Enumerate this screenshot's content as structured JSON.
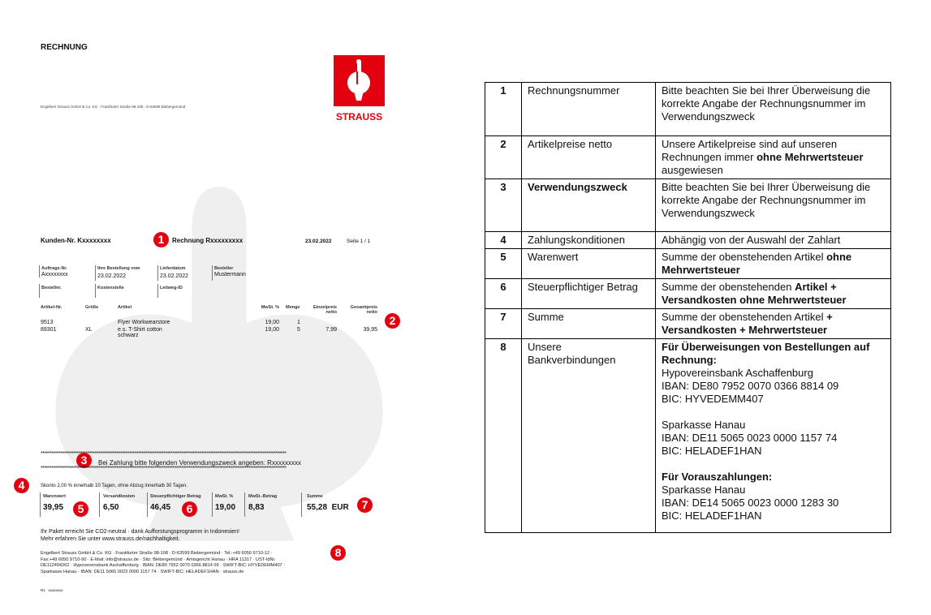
{
  "invoice": {
    "title": "RECHNUNG",
    "sender_line": "Engelbert Strauss GmbH & Co. KG · Frankfurter Straße 98-108 · D-63599 Biebergemünd",
    "logo_text": "STRAUSS",
    "customer_no": "Kunden-Nr. Kxxxxxxxx",
    "invoice_no": "Rechnung Rxxxxxxxxx",
    "date": "23.02.2022",
    "page": "Seite  1 / 1",
    "fields": [
      {
        "label": "Auftrags-Nr.",
        "value": "Axxxxxxxx"
      },
      {
        "label": "Ihre Bestellung vom",
        "value": "23.02.2022"
      },
      {
        "label": "Lieferdatum",
        "value": "23.02.2022"
      },
      {
        "label": "Besteller",
        "value": "Mustermann"
      },
      {
        "label": "Bestellnr.",
        "value": ""
      },
      {
        "label": "Kostenstelle",
        "value": ""
      },
      {
        "label": "Leitweg-ID",
        "value": ""
      }
    ],
    "item_headers": [
      "Artikel-Nr.",
      "Größe",
      "Artikel",
      "MwSt. %",
      "Menge",
      "Einzelpreis netto",
      "Gesamtpreis netto"
    ],
    "items": [
      {
        "nr": "9513",
        "size": "",
        "article": "Flyer Workwearstore",
        "vat": "19,00",
        "qty": "1",
        "unit": "",
        "total": ""
      },
      {
        "nr": "89301",
        "size": "XL",
        "article": "e.s. T-Shirt cotton schwarz",
        "vat": "19,00",
        "qty": "5",
        "unit": "7,99",
        "total": "39,95"
      }
    ],
    "stars": "****************************************************************************************************************************************",
    "purpose": "Bei Zahlung bitte folgenden Verwendungszweck angeben:",
    "purpose_ref": "Rxxxxxxxxx",
    "terms": "Skonto 2,00 % innerhalb 10 Tagen, ohne Abzug innerhalb 30 Tagen.",
    "totals": [
      {
        "label": "Warenwert",
        "value": "39,95"
      },
      {
        "label": "Versandkosten",
        "value": "6,50"
      },
      {
        "label": "Steuerpflichtiger Betrag",
        "value": "46,45"
      },
      {
        "label": "MwSt. %",
        "value": "19,00"
      },
      {
        "label": "MwSt.-Betrag",
        "value": "8,83"
      },
      {
        "label": "Summe",
        "value": "55,28  EUR"
      }
    ],
    "co2_1": "Ihr Paket erreicht Sie CO2-neutral · dank Aufforstungsprogramm in Indonesien!",
    "co2_2": "Mehr erfahren Sie unter www.strauss.de/nachhaltigkeit.",
    "footer": [
      "Engelbert Strauss GmbH & Co. KG · Frankfurter Straße 98-108 · D-63599 Biebergemünd · Tel.:+49 6050 9710-12 ·",
      "Fax:+49 6050 9710-90 · E-Mail: info@strauss.de · Sitz: Biebergemünd · Amtsgericht Hanau · HRA 11317 · UST-IdNr.",
      "DE112494262 · Hypovereinsbank Aschaffenburg · IBAN: DE80 7952 0070 0366 8814 09 · SWIFT-BIC: HYVEDEMM407 ·",
      "Sparkasse Hanau · IBAN: DE11 5065 0023 0000 1157 74 · SWIFT-BIC: HELADEF1HAN · strauss.de"
    ],
    "bottom_code": "R1   xxxxxxxx",
    "badges": [
      "1",
      "2",
      "3",
      "4",
      "5",
      "6",
      "7",
      "8"
    ]
  },
  "legend": [
    {
      "n": "1",
      "term": "Rechnungsnummer",
      "desc": "Bitte beachten Sie bei Ihrer Überweisung die korrekte Angabe der Rechnungsnummer im Verwendungszweck"
    },
    {
      "n": "2",
      "term": "Artikelpreise netto",
      "desc_a": "Unsere Artikelpreise sind auf unseren Rechnungen immer ",
      "desc_b": "ohne Mehrwertsteuer",
      "desc_c": " ausgewiesen"
    },
    {
      "n": "3",
      "term": "Verwendungszweck",
      "desc": "Bitte beachten Sie bei Ihrer Überweisung die korrekte Angabe der Rechnungsnummer im Verwendungszweck"
    },
    {
      "n": "4",
      "term": "Zahlungskonditionen",
      "desc": "Abhängig von der Auswahl der Zahlart"
    },
    {
      "n": "5",
      "term": "Warenwert",
      "desc_a": "Summe der obenstehenden Artikel ",
      "desc_b": "ohne Mehrwertsteuer"
    },
    {
      "n": "6",
      "term": "Steuerpflichtiger Betrag",
      "desc_a": "Summe der obenstehenden ",
      "desc_b": "Artikel + Versandkosten ohne Mehrwertsteuer"
    },
    {
      "n": "7",
      "term": "Summe",
      "desc_a": "Summe der obenstehenden Artikel ",
      "desc_b": "+ Versandkosten + Mehrwertsteuer"
    },
    {
      "n": "8",
      "term": "Unsere Bankverbindungen",
      "bank": {
        "h1": "Für Überweisungen von Bestellungen auf Rechnung:",
        "b1": "Hypovereinsbank Aschaffenburg",
        "i1": "IBAN: DE80 7952 0070 0366 8814 09",
        "c1": "BIC: HYVEDEMM407",
        "b2": "Sparkasse Hanau",
        "i2": "IBAN: DE11 5065 0023 0000 1157 74",
        "c2": "BIC: HELADEF1HAN",
        "h2": "Für Vorauszahlungen:",
        "b3": "Sparkasse Hanau",
        "i3": "IBAN: DE14 5065 0023 0000 1283 30",
        "c3": "BIC: HELADEF1HAN"
      }
    }
  ],
  "colors": {
    "brand_red": "#e3000f"
  }
}
